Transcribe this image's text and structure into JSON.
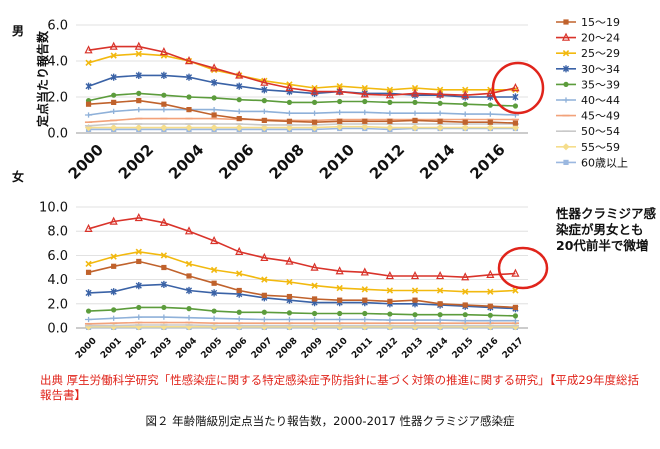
{
  "annotation": "性器クラミジア感染症が男女とも20代前半で微増",
  "source_note": "出典 厚生労働科学研究「性感染症に関する特定感染症予防指針に基づく対策の推進に関する研究」【平成29年度総括報告書】",
  "caption": "図２ 年齢階級別定点当たり報告数，2000-2017 性器クラミジア感染症",
  "colors": {
    "15-19": "#c0622c",
    "20-24": "#d9332a",
    "25-29": "#f2b90f",
    "30-34": "#3a62a6",
    "35-39": "#5c9c3c",
    "40-44": "#8fb1d9",
    "45-49": "#f2a27a",
    "50-54": "#c9c9c9",
    "55-59": "#f5dd8c",
    "60+": "#9bb8e0",
    "highlight": "#e0241b"
  },
  "chart_data": [
    {
      "type": "line",
      "panel_label": "男",
      "ylabel": "定点当たり報告数",
      "ylim": [
        0,
        6
      ],
      "yticks": [
        "0.0",
        "2.0",
        "4.0",
        "6.0"
      ],
      "x": [
        2000,
        2001,
        2002,
        2003,
        2004,
        2005,
        2006,
        2007,
        2008,
        2009,
        2010,
        2011,
        2012,
        2013,
        2014,
        2015,
        2016,
        2017
      ],
      "xticks": [
        "2000",
        "2002",
        "2004",
        "2006",
        "2008",
        "2010",
        "2012",
        "2014",
        "2016"
      ],
      "legend_position": "right",
      "series": [
        {
          "key": "15-19",
          "name": "15～19",
          "marker": "square",
          "values": [
            1.6,
            1.7,
            1.8,
            1.6,
            1.3,
            1.0,
            0.8,
            0.7,
            0.65,
            0.6,
            0.65,
            0.65,
            0.65,
            0.7,
            0.65,
            0.6,
            0.6,
            0.55
          ]
        },
        {
          "key": "20-24",
          "name": "20～24",
          "marker": "triangle",
          "values": [
            4.6,
            4.8,
            4.8,
            4.5,
            4.0,
            3.6,
            3.2,
            2.8,
            2.5,
            2.3,
            2.3,
            2.15,
            2.1,
            2.2,
            2.15,
            2.1,
            2.2,
            2.5
          ]
        },
        {
          "key": "25-29",
          "name": "25～29",
          "marker": "x",
          "values": [
            3.9,
            4.3,
            4.4,
            4.3,
            4.0,
            3.5,
            3.2,
            2.9,
            2.7,
            2.5,
            2.6,
            2.5,
            2.4,
            2.5,
            2.4,
            2.4,
            2.4,
            2.4
          ]
        },
        {
          "key": "30-34",
          "name": "30～34",
          "marker": "star",
          "values": [
            2.6,
            3.1,
            3.2,
            3.2,
            3.1,
            2.8,
            2.6,
            2.4,
            2.3,
            2.2,
            2.3,
            2.2,
            2.2,
            2.1,
            2.1,
            2.0,
            2.0,
            2.0
          ]
        },
        {
          "key": "35-39",
          "name": "35～39",
          "marker": "circle",
          "values": [
            1.8,
            2.1,
            2.2,
            2.1,
            2.0,
            1.95,
            1.85,
            1.8,
            1.7,
            1.7,
            1.75,
            1.75,
            1.7,
            1.7,
            1.65,
            1.6,
            1.55,
            1.5
          ]
        },
        {
          "key": "40-44",
          "name": "40～44",
          "marker": "plus",
          "values": [
            1.0,
            1.2,
            1.3,
            1.3,
            1.3,
            1.3,
            1.2,
            1.2,
            1.1,
            1.1,
            1.15,
            1.15,
            1.1,
            1.1,
            1.1,
            1.05,
            1.05,
            1.0
          ]
        },
        {
          "key": "45-49",
          "name": "45～49",
          "marker": "dash",
          "values": [
            0.6,
            0.7,
            0.8,
            0.8,
            0.8,
            0.8,
            0.75,
            0.75,
            0.7,
            0.7,
            0.75,
            0.75,
            0.75,
            0.75,
            0.75,
            0.75,
            0.75,
            0.75
          ]
        },
        {
          "key": "50-54",
          "name": "50～54",
          "marker": "dash",
          "values": [
            0.4,
            0.5,
            0.5,
            0.5,
            0.5,
            0.5,
            0.5,
            0.45,
            0.45,
            0.45,
            0.5,
            0.5,
            0.5,
            0.5,
            0.5,
            0.5,
            0.5,
            0.5
          ]
        },
        {
          "key": "55-59",
          "name": "55～59",
          "marker": "diamond",
          "values": [
            0.3,
            0.3,
            0.3,
            0.3,
            0.3,
            0.3,
            0.3,
            0.3,
            0.3,
            0.3,
            0.35,
            0.35,
            0.3,
            0.3,
            0.3,
            0.3,
            0.3,
            0.3
          ]
        },
        {
          "key": "60+",
          "name": "60歳以上",
          "marker": "square",
          "values": [
            0.2,
            0.2,
            0.2,
            0.2,
            0.2,
            0.2,
            0.2,
            0.2,
            0.2,
            0.2,
            0.25,
            0.25,
            0.2,
            0.25,
            0.25,
            0.25,
            0.25,
            0.25
          ]
        }
      ]
    },
    {
      "type": "line",
      "panel_label": "女",
      "ylim": [
        0,
        10
      ],
      "yticks": [
        "0.0",
        "2.0",
        "4.0",
        "6.0",
        "8.0",
        "10.0"
      ],
      "x": [
        2000,
        2001,
        2002,
        2003,
        2004,
        2005,
        2006,
        2007,
        2008,
        2009,
        2010,
        2011,
        2012,
        2013,
        2014,
        2015,
        2016,
        2017
      ],
      "xticks": [
        "2000",
        "2001",
        "2002",
        "2003",
        "2004",
        "2005",
        "2006",
        "2007",
        "2008",
        "2009",
        "2010",
        "2011",
        "2012",
        "2013",
        "2014",
        "2015",
        "2016",
        "2017"
      ],
      "series": [
        {
          "key": "15-19",
          "name": "15～19",
          "marker": "square",
          "values": [
            4.6,
            5.1,
            5.5,
            5.0,
            4.3,
            3.7,
            3.1,
            2.7,
            2.6,
            2.4,
            2.3,
            2.3,
            2.2,
            2.3,
            2.0,
            1.9,
            1.8,
            1.7
          ]
        },
        {
          "key": "20-24",
          "name": "20～24",
          "marker": "triangle",
          "values": [
            8.2,
            8.8,
            9.1,
            8.7,
            8.0,
            7.2,
            6.3,
            5.8,
            5.5,
            5.0,
            4.7,
            4.6,
            4.3,
            4.3,
            4.3,
            4.2,
            4.4,
            4.5
          ]
        },
        {
          "key": "25-29",
          "name": "25～29",
          "marker": "x",
          "values": [
            5.3,
            5.9,
            6.3,
            6.0,
            5.3,
            4.8,
            4.5,
            4.0,
            3.8,
            3.5,
            3.3,
            3.2,
            3.1,
            3.1,
            3.1,
            3.0,
            3.0,
            3.1
          ]
        },
        {
          "key": "30-34",
          "name": "30～34",
          "marker": "star",
          "values": [
            2.9,
            3.0,
            3.5,
            3.6,
            3.1,
            2.9,
            2.8,
            2.5,
            2.3,
            2.1,
            2.1,
            2.1,
            2.0,
            2.0,
            1.9,
            1.8,
            1.7,
            1.6
          ]
        },
        {
          "key": "35-39",
          "name": "35～39",
          "marker": "circle",
          "values": [
            1.4,
            1.5,
            1.7,
            1.7,
            1.6,
            1.4,
            1.3,
            1.3,
            1.25,
            1.2,
            1.2,
            1.2,
            1.15,
            1.1,
            1.1,
            1.1,
            1.05,
            1.0
          ]
        },
        {
          "key": "40-44",
          "name": "40～44",
          "marker": "plus",
          "values": [
            0.7,
            0.8,
            0.9,
            0.9,
            0.85,
            0.8,
            0.75,
            0.7,
            0.7,
            0.7,
            0.7,
            0.7,
            0.65,
            0.65,
            0.65,
            0.6,
            0.6,
            0.6
          ]
        },
        {
          "key": "45-49",
          "name": "45～49",
          "marker": "dash",
          "values": [
            0.35,
            0.4,
            0.45,
            0.45,
            0.45,
            0.4,
            0.4,
            0.4,
            0.4,
            0.4,
            0.4,
            0.4,
            0.4,
            0.4,
            0.4,
            0.4,
            0.4,
            0.4
          ]
        },
        {
          "key": "50-54",
          "name": "50～54",
          "marker": "dash",
          "values": [
            0.2,
            0.2,
            0.25,
            0.25,
            0.25,
            0.2,
            0.2,
            0.2,
            0.2,
            0.2,
            0.2,
            0.2,
            0.2,
            0.2,
            0.2,
            0.2,
            0.2,
            0.2
          ]
        },
        {
          "key": "55-59",
          "name": "55～59",
          "marker": "diamond",
          "values": [
            0.1,
            0.1,
            0.1,
            0.1,
            0.1,
            0.1,
            0.1,
            0.1,
            0.1,
            0.1,
            0.1,
            0.1,
            0.1,
            0.1,
            0.1,
            0.1,
            0.1,
            0.1
          ]
        },
        {
          "key": "60+",
          "name": "60歳以上",
          "marker": "square",
          "values": [
            0.05,
            0.05,
            0.05,
            0.05,
            0.05,
            0.05,
            0.05,
            0.05,
            0.05,
            0.05,
            0.05,
            0.05,
            0.05,
            0.05,
            0.05,
            0.05,
            0.05,
            0.05
          ]
        }
      ]
    }
  ]
}
